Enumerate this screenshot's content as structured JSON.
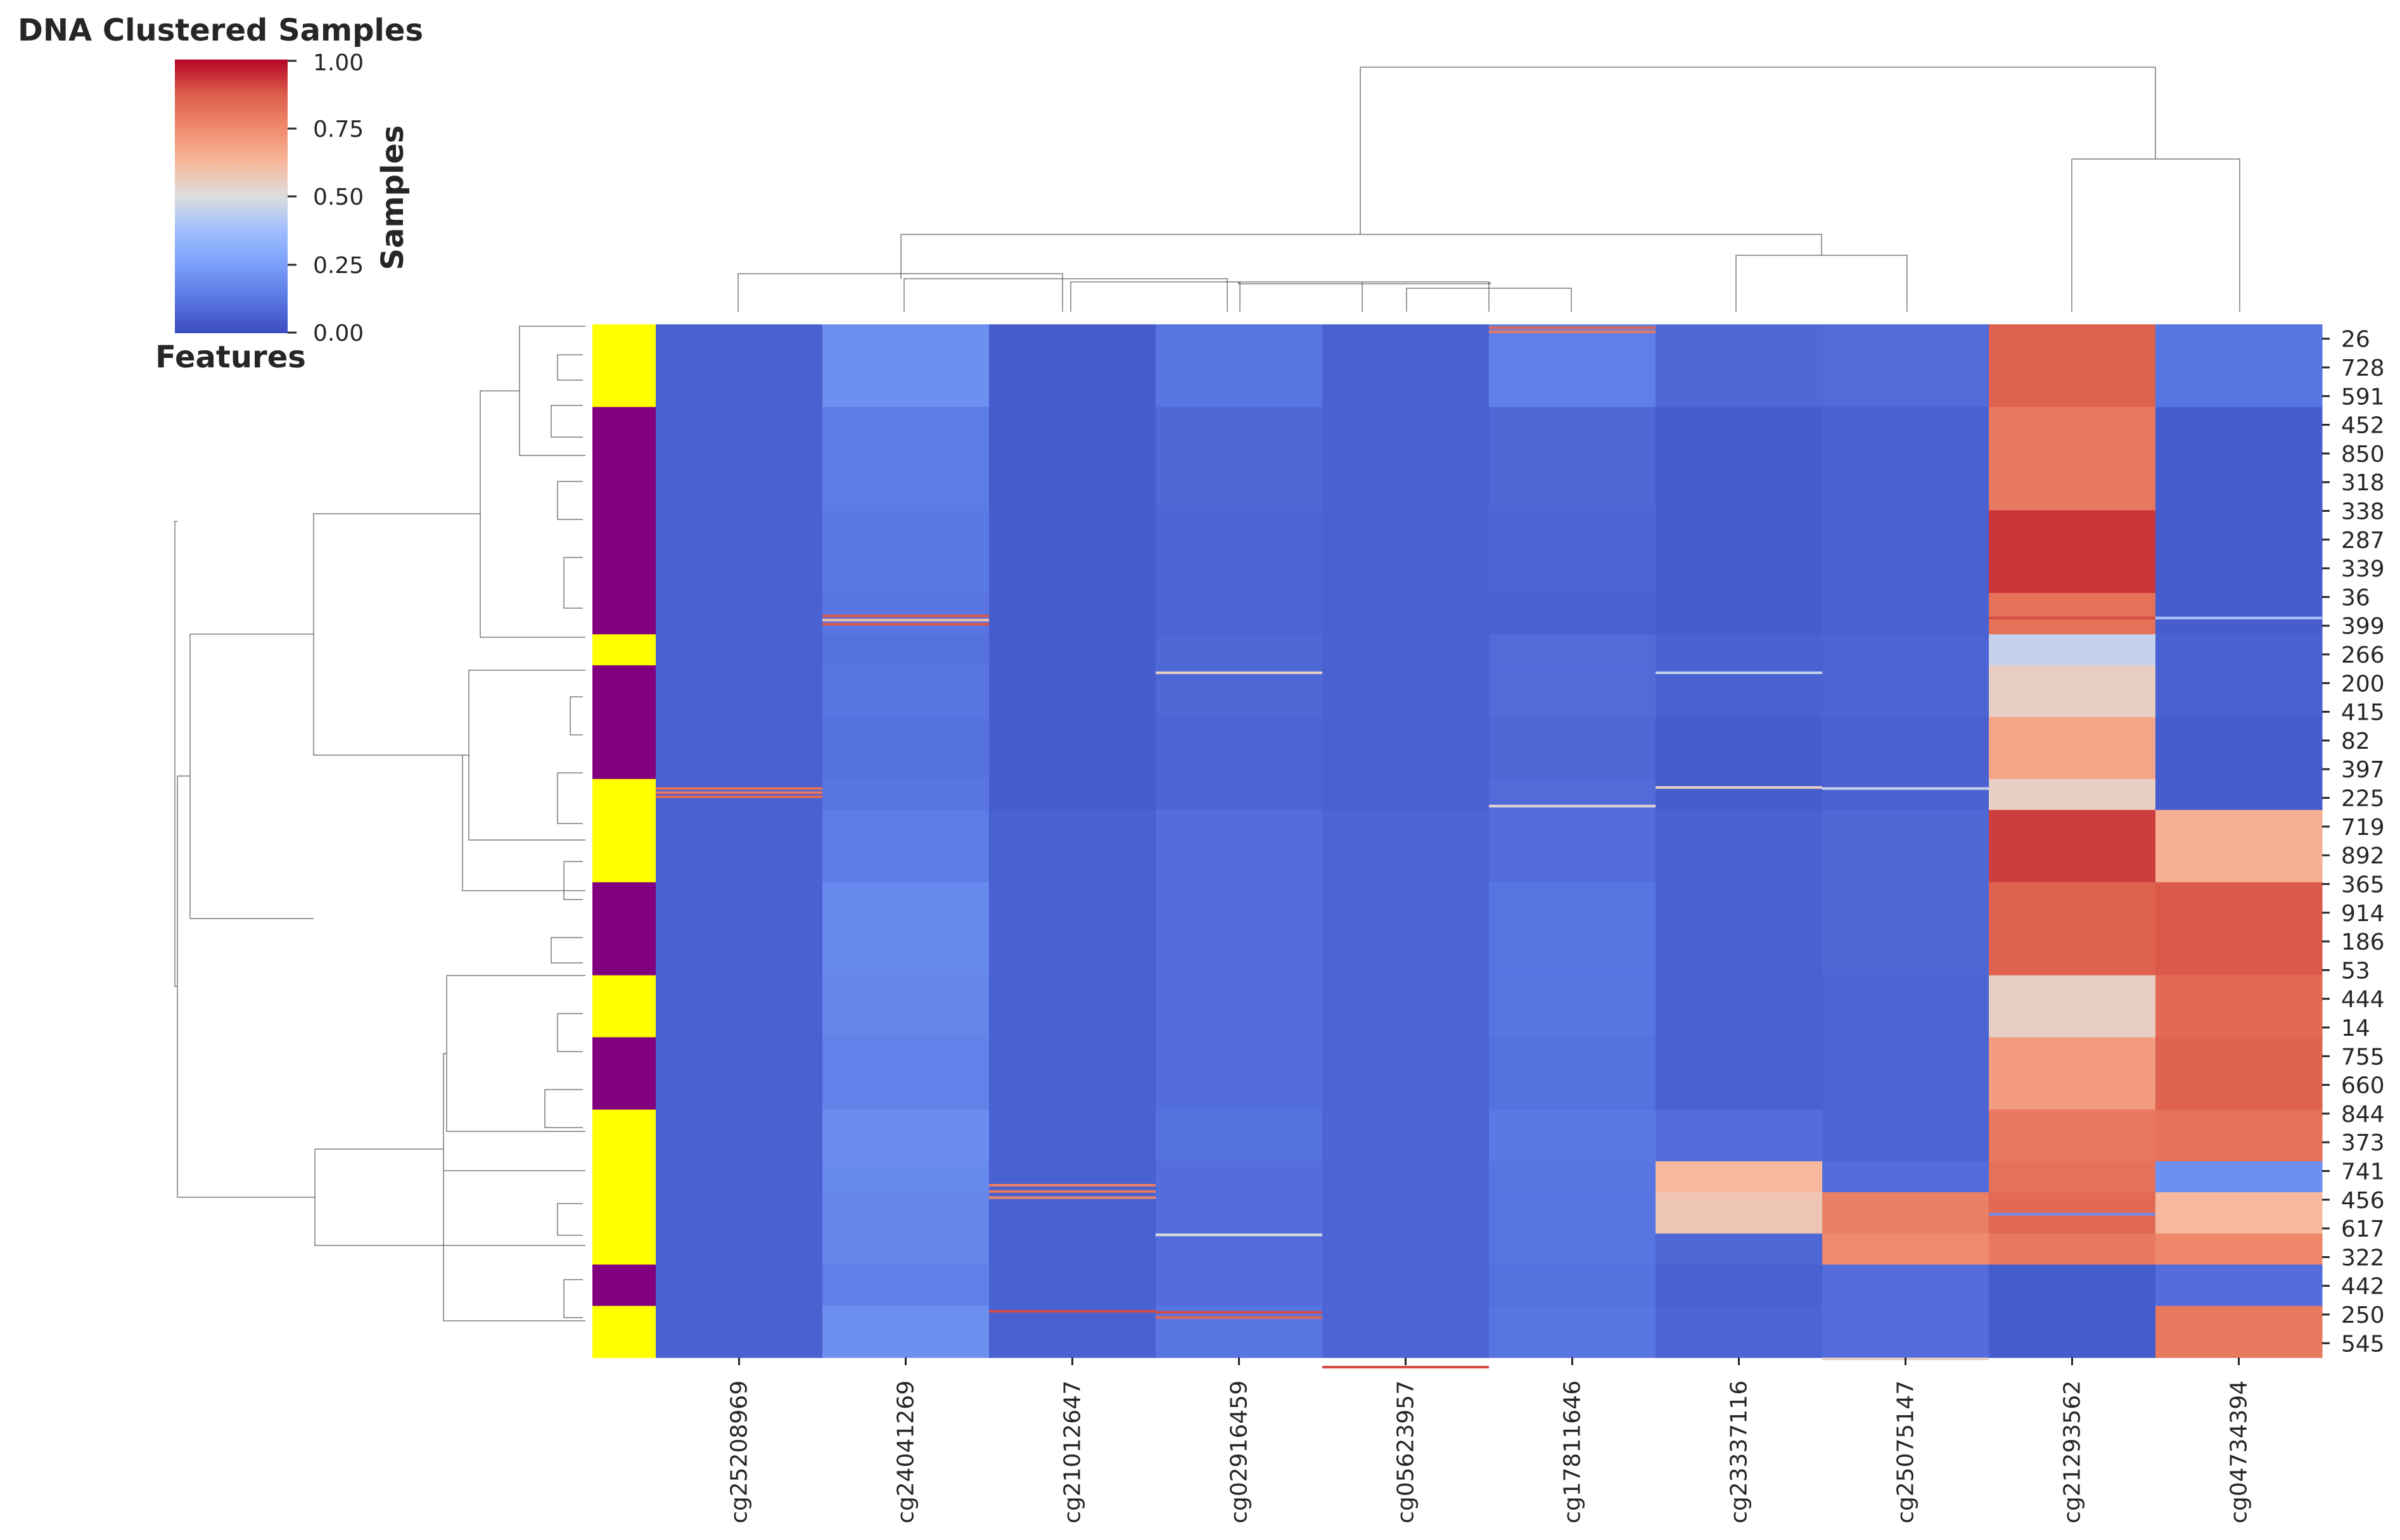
{
  "chart_data": {
    "type": "heatmap",
    "title": "DNA Clustered Samples",
    "colorbar": {
      "label": "Samples",
      "ticks": [
        "1.00",
        "0.75",
        "0.50",
        "0.25",
        "0.00"
      ],
      "range": [
        0,
        1
      ],
      "colormap": "coolwarm",
      "low_color": "#3b4cc0",
      "mid_color": "#dddddd",
      "high_color": "#b40426"
    },
    "row_axis_label": "Features",
    "row_annotation_colors": {
      "A": "#ffff00",
      "B": "#800080"
    },
    "columns": [
      "cg25208969",
      "cg24041269",
      "cg21012647",
      "cg02916459",
      "cg05623957",
      "cg17811646",
      "cg23337116",
      "cg25075147",
      "cg21293562",
      "cg04734394"
    ],
    "row_tick_labels": [
      "26",
      "728",
      "591",
      "452",
      "850",
      "318",
      "338",
      "287",
      "339",
      "36",
      "399",
      "266",
      "200",
      "415",
      "82",
      "397",
      "225",
      "719",
      "892",
      "365",
      "914",
      "186",
      "53",
      "444",
      "14",
      "755",
      "660",
      "844",
      "373",
      "741",
      "456",
      "617",
      "322",
      "442",
      "250",
      "545"
    ],
    "blocks": [
      {
        "rows": 80,
        "annotation": "A",
        "values": [
          0.06,
          0.2,
          0.05,
          0.12,
          0.06,
          0.15,
          0.08,
          0.09,
          0.86,
          0.12
        ]
      },
      {
        "rows": 100,
        "annotation": "B",
        "values": [
          0.06,
          0.14,
          0.05,
          0.08,
          0.06,
          0.08,
          0.05,
          0.06,
          0.8,
          0.05
        ]
      },
      {
        "rows": 80,
        "annotation": "B",
        "values": [
          0.06,
          0.13,
          0.05,
          0.07,
          0.06,
          0.07,
          0.05,
          0.06,
          0.93,
          0.05
        ]
      },
      {
        "rows": 40,
        "annotation": "B",
        "values": [
          0.06,
          0.12,
          0.05,
          0.07,
          0.06,
          0.06,
          0.05,
          0.06,
          0.82,
          0.05
        ]
      },
      {
        "rows": 30,
        "annotation": "A",
        "values": [
          0.06,
          0.11,
          0.05,
          0.08,
          0.06,
          0.09,
          0.06,
          0.07,
          0.45,
          0.06
        ]
      },
      {
        "rows": 50,
        "annotation": "B",
        "values": [
          0.06,
          0.12,
          0.05,
          0.08,
          0.06,
          0.09,
          0.06,
          0.07,
          0.55,
          0.06
        ]
      },
      {
        "rows": 60,
        "annotation": "B",
        "values": [
          0.06,
          0.11,
          0.05,
          0.07,
          0.06,
          0.08,
          0.05,
          0.06,
          0.68,
          0.05
        ]
      },
      {
        "rows": 30,
        "annotation": "A",
        "values": [
          0.06,
          0.12,
          0.05,
          0.07,
          0.06,
          0.09,
          0.05,
          0.06,
          0.55,
          0.05
        ]
      },
      {
        "rows": 70,
        "annotation": "A",
        "values": [
          0.06,
          0.14,
          0.06,
          0.1,
          0.07,
          0.1,
          0.06,
          0.08,
          0.92,
          0.65
        ]
      },
      {
        "rows": 90,
        "annotation": "B",
        "values": [
          0.06,
          0.18,
          0.06,
          0.1,
          0.07,
          0.12,
          0.06,
          0.08,
          0.86,
          0.88
        ]
      },
      {
        "rows": 60,
        "annotation": "A",
        "values": [
          0.06,
          0.17,
          0.06,
          0.1,
          0.07,
          0.12,
          0.06,
          0.07,
          0.55,
          0.84
        ]
      },
      {
        "rows": 70,
        "annotation": "B",
        "values": [
          0.06,
          0.16,
          0.06,
          0.1,
          0.07,
          0.11,
          0.06,
          0.07,
          0.7,
          0.86
        ]
      },
      {
        "rows": 50,
        "annotation": "A",
        "values": [
          0.06,
          0.19,
          0.06,
          0.11,
          0.07,
          0.13,
          0.1,
          0.07,
          0.8,
          0.82
        ]
      },
      {
        "rows": 30,
        "annotation": "A",
        "values": [
          0.06,
          0.18,
          0.06,
          0.1,
          0.07,
          0.12,
          0.62,
          0.1,
          0.82,
          0.2
        ]
      },
      {
        "rows": 40,
        "annotation": "A",
        "values": [
          0.06,
          0.17,
          0.06,
          0.1,
          0.07,
          0.12,
          0.58,
          0.78,
          0.84,
          0.62
        ]
      },
      {
        "rows": 30,
        "annotation": "A",
        "values": [
          0.06,
          0.17,
          0.06,
          0.1,
          0.07,
          0.12,
          0.08,
          0.75,
          0.8,
          0.76
        ]
      },
      {
        "rows": 40,
        "annotation": "B",
        "values": [
          0.06,
          0.15,
          0.06,
          0.1,
          0.07,
          0.11,
          0.06,
          0.1,
          0.05,
          0.1
        ]
      },
      {
        "rows": 50,
        "annotation": "A",
        "values": [
          0.06,
          0.2,
          0.06,
          0.12,
          0.07,
          0.12,
          0.07,
          0.1,
          0.05,
          0.8
        ]
      }
    ],
    "stripes": [
      {
        "row": 448,
        "col": 0,
        "v": 0.82
      },
      {
        "row": 452,
        "col": 0,
        "v": 0.8
      },
      {
        "row": 456,
        "col": 0,
        "v": 0.84
      },
      {
        "row": 281,
        "col": 1,
        "v": 0.88
      },
      {
        "row": 285,
        "col": 1,
        "v": 0.6
      },
      {
        "row": 289,
        "col": 1,
        "v": 0.88
      },
      {
        "row": 832,
        "col": 2,
        "v": 0.78
      },
      {
        "row": 838,
        "col": 2,
        "v": 0.8
      },
      {
        "row": 844,
        "col": 2,
        "v": 0.76
      },
      {
        "row": 954,
        "col": 2,
        "v": 0.9
      },
      {
        "row": 955,
        "col": 3,
        "v": 0.9
      },
      {
        "row": 960,
        "col": 3,
        "v": 0.85
      },
      {
        "row": 336,
        "col": 3,
        "v": 0.55
      },
      {
        "row": 880,
        "col": 3,
        "v": 0.5
      },
      {
        "row": 1008,
        "col": 4,
        "v": 0.9
      },
      {
        "row": 2,
        "col": 5,
        "v": 0.85
      },
      {
        "row": 6,
        "col": 5,
        "v": 0.8
      },
      {
        "row": 465,
        "col": 5,
        "v": 0.52
      },
      {
        "row": 447,
        "col": 6,
        "v": 0.55
      },
      {
        "row": 336,
        "col": 6,
        "v": 0.45
      },
      {
        "row": 448,
        "col": 7,
        "v": 0.45
      },
      {
        "row": 1000,
        "col": 7,
        "v": 0.55
      },
      {
        "row": 283,
        "col": 8,
        "v": 0.9
      },
      {
        "row": 860,
        "col": 8,
        "v": 0.2
      },
      {
        "row": 283,
        "col": 9,
        "v": 0.4
      }
    ]
  }
}
